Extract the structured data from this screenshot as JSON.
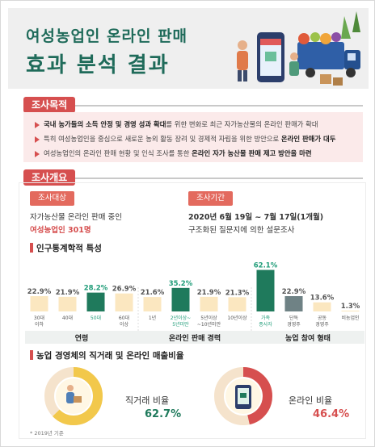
{
  "header": {
    "title_line1": "여성농업인 온라인 판매",
    "title_line2": "효과 분석 결과"
  },
  "purpose": {
    "tab": "조사목적",
    "items": [
      {
        "parts": [
          {
            "t": "국내 농가들의 소득 안정 및 경영 성과 확대",
            "b": true
          },
          {
            "t": "를 위한 변화로 최근 자가농산물의 온라인 판매가 확대",
            "b": false
          }
        ]
      },
      {
        "parts": [
          {
            "t": "특히 여성농업인을 중심으로 새로운 농외 활동 장려 및 경제적 자립을 위한 방안으로 ",
            "b": false
          },
          {
            "t": "온라인 판매가 대두",
            "b": true
          }
        ]
      },
      {
        "parts": [
          {
            "t": "여성농업인의 온라인 판매 현황 및 인식 조사를 통한 ",
            "b": false
          },
          {
            "t": "온라인 자가 농산물 판매 제고 방안을 마련",
            "b": true
          }
        ]
      }
    ]
  },
  "overview": {
    "tab": "조사개요",
    "target_chip": "조사대상",
    "target_desc": "자가농산물 온라인 판매 중인",
    "target_count": "여성농업인 301명",
    "period_chip": "조사기간",
    "period_dates": "2020년 6월 19일 ~ 7월 17일(1개월)",
    "period_method": "구조화된 질문지에 의한 설문조사",
    "demo_title": "인구통계학적 특성",
    "groups": [
      "연령",
      "온라인 판매 경력",
      "농업 참여 형태"
    ]
  },
  "chart_data": {
    "type": "bar",
    "unit": "%",
    "ylim": [
      0,
      70
    ],
    "categories": [
      "30대\n이하",
      "40대",
      "50대",
      "60대\n이상",
      "1년",
      "2년이상~\n5년미만",
      "5년이상\n~10년미만",
      "10년이상",
      "가족\n종사자",
      "단독\n경영주",
      "공동\n경영주",
      "비농업인"
    ],
    "values": [
      22.9,
      21.9,
      28.2,
      26.9,
      21.6,
      35.2,
      21.9,
      21.3,
      62.1,
      22.9,
      13.6,
      1.3
    ],
    "value_labels": [
      "22.9%",
      "21.9%",
      "28.2%",
      "26.9%",
      "21.6%",
      "35.2%",
      "21.9%",
      "21.3%",
      "62.1%",
      "22.9%",
      "13.6%",
      "1.3%"
    ],
    "groups": [
      {
        "name": "연령",
        "indices": [
          0,
          1,
          2,
          3
        ]
      },
      {
        "name": "온라인 판매 경력",
        "indices": [
          4,
          5,
          6,
          7
        ]
      },
      {
        "name": "농업 참여 형태",
        "indices": [
          8,
          9,
          10,
          11
        ]
      }
    ],
    "highlight_indices": [
      2,
      5,
      8
    ],
    "colors": {
      "base": "#fbe7c0",
      "highlight": "#1f7a5c",
      "grey": "#6f8285",
      "highlight_label": "#1f9c78"
    }
  },
  "sales_ratio": {
    "title": "농업 경영체의 직거래 및 온라인 매출비율",
    "direct_label": "직거래 비율",
    "direct_value": "62.7%",
    "direct_pct": 62.7,
    "online_label": "온라인 비율",
    "online_value": "46.4%",
    "online_pct": 46.4,
    "footnote": "* 2019년 기준",
    "colors": {
      "direct": "#f2c84b",
      "online": "#d64f4f",
      "track": "#f5e3cc",
      "value_direct": "#1f7a5c",
      "value_online": "#d64f4f"
    }
  },
  "colors": {
    "accent_green": "#1f6b5a",
    "accent_red": "#d64f4f"
  }
}
